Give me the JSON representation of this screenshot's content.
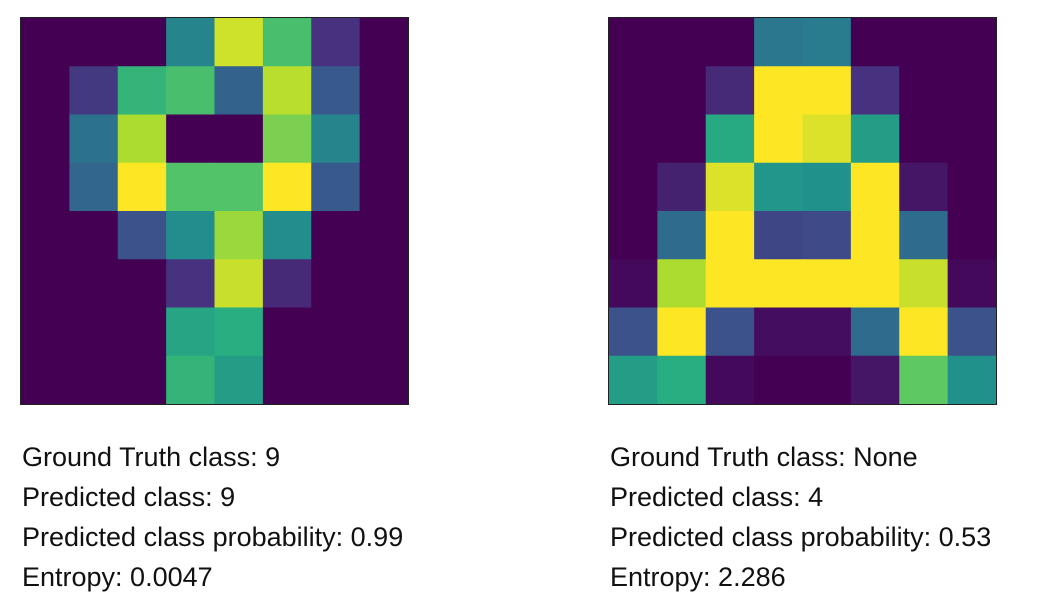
{
  "colormap": "viridis",
  "palette": {
    "0.00": "#440154",
    "0.12": "#46327e",
    "0.25": "#3b528b",
    "0.38": "#2c728e",
    "0.50": "#21918c",
    "0.62": "#28ae80",
    "0.75": "#5ec962",
    "0.88": "#addc30",
    "1.00": "#fde725"
  },
  "panels": [
    {
      "id": "digit-9",
      "grid": [
        [
          0,
          0,
          0,
          0.45,
          0.93,
          0.7,
          0.12,
          0
        ],
        [
          0,
          0.15,
          0.65,
          0.7,
          0.32,
          0.9,
          0.28,
          0
        ],
        [
          0,
          0.38,
          0.88,
          0,
          0,
          0.8,
          0.45,
          0
        ],
        [
          0,
          0.33,
          1.0,
          0.72,
          0.72,
          1.0,
          0.28,
          0
        ],
        [
          0,
          0,
          0.25,
          0.48,
          0.85,
          0.48,
          0,
          0
        ],
        [
          0,
          0,
          0,
          0.12,
          0.92,
          0.1,
          0,
          0
        ],
        [
          0,
          0,
          0,
          0.58,
          0.62,
          0,
          0,
          0
        ],
        [
          0,
          0,
          0,
          0.65,
          0.55,
          0,
          0,
          0
        ]
      ],
      "text": {
        "ground_truth": "Ground Truth class: 9",
        "predicted": "Predicted class: 9",
        "probability": "Predicted class probability: 0.99",
        "entropy": "Entropy: 0.0047"
      }
    },
    {
      "id": "letter-a",
      "grid": [
        [
          0,
          0,
          0,
          0.4,
          0.42,
          0,
          0,
          0
        ],
        [
          0,
          0,
          0.1,
          1.0,
          1.0,
          0.12,
          0,
          0
        ],
        [
          0,
          0,
          0.6,
          1.0,
          0.95,
          0.55,
          0,
          0
        ],
        [
          0,
          0.08,
          0.95,
          0.52,
          0.5,
          1.0,
          0.05,
          0
        ],
        [
          0,
          0.35,
          1.0,
          0.2,
          0.22,
          1.0,
          0.35,
          0
        ],
        [
          0.02,
          0.88,
          1.0,
          1.0,
          1.0,
          1.0,
          0.92,
          0.02
        ],
        [
          0.25,
          1.0,
          0.25,
          0.03,
          0.03,
          0.35,
          1.0,
          0.25
        ],
        [
          0.55,
          0.62,
          0.02,
          0,
          0,
          0.05,
          0.75,
          0.5
        ]
      ],
      "text": {
        "ground_truth": "Ground Truth class: None",
        "predicted": "Predicted class: 4",
        "probability": "Predicted class probability: 0.53",
        "entropy": "Entropy: 2.286"
      }
    }
  ]
}
